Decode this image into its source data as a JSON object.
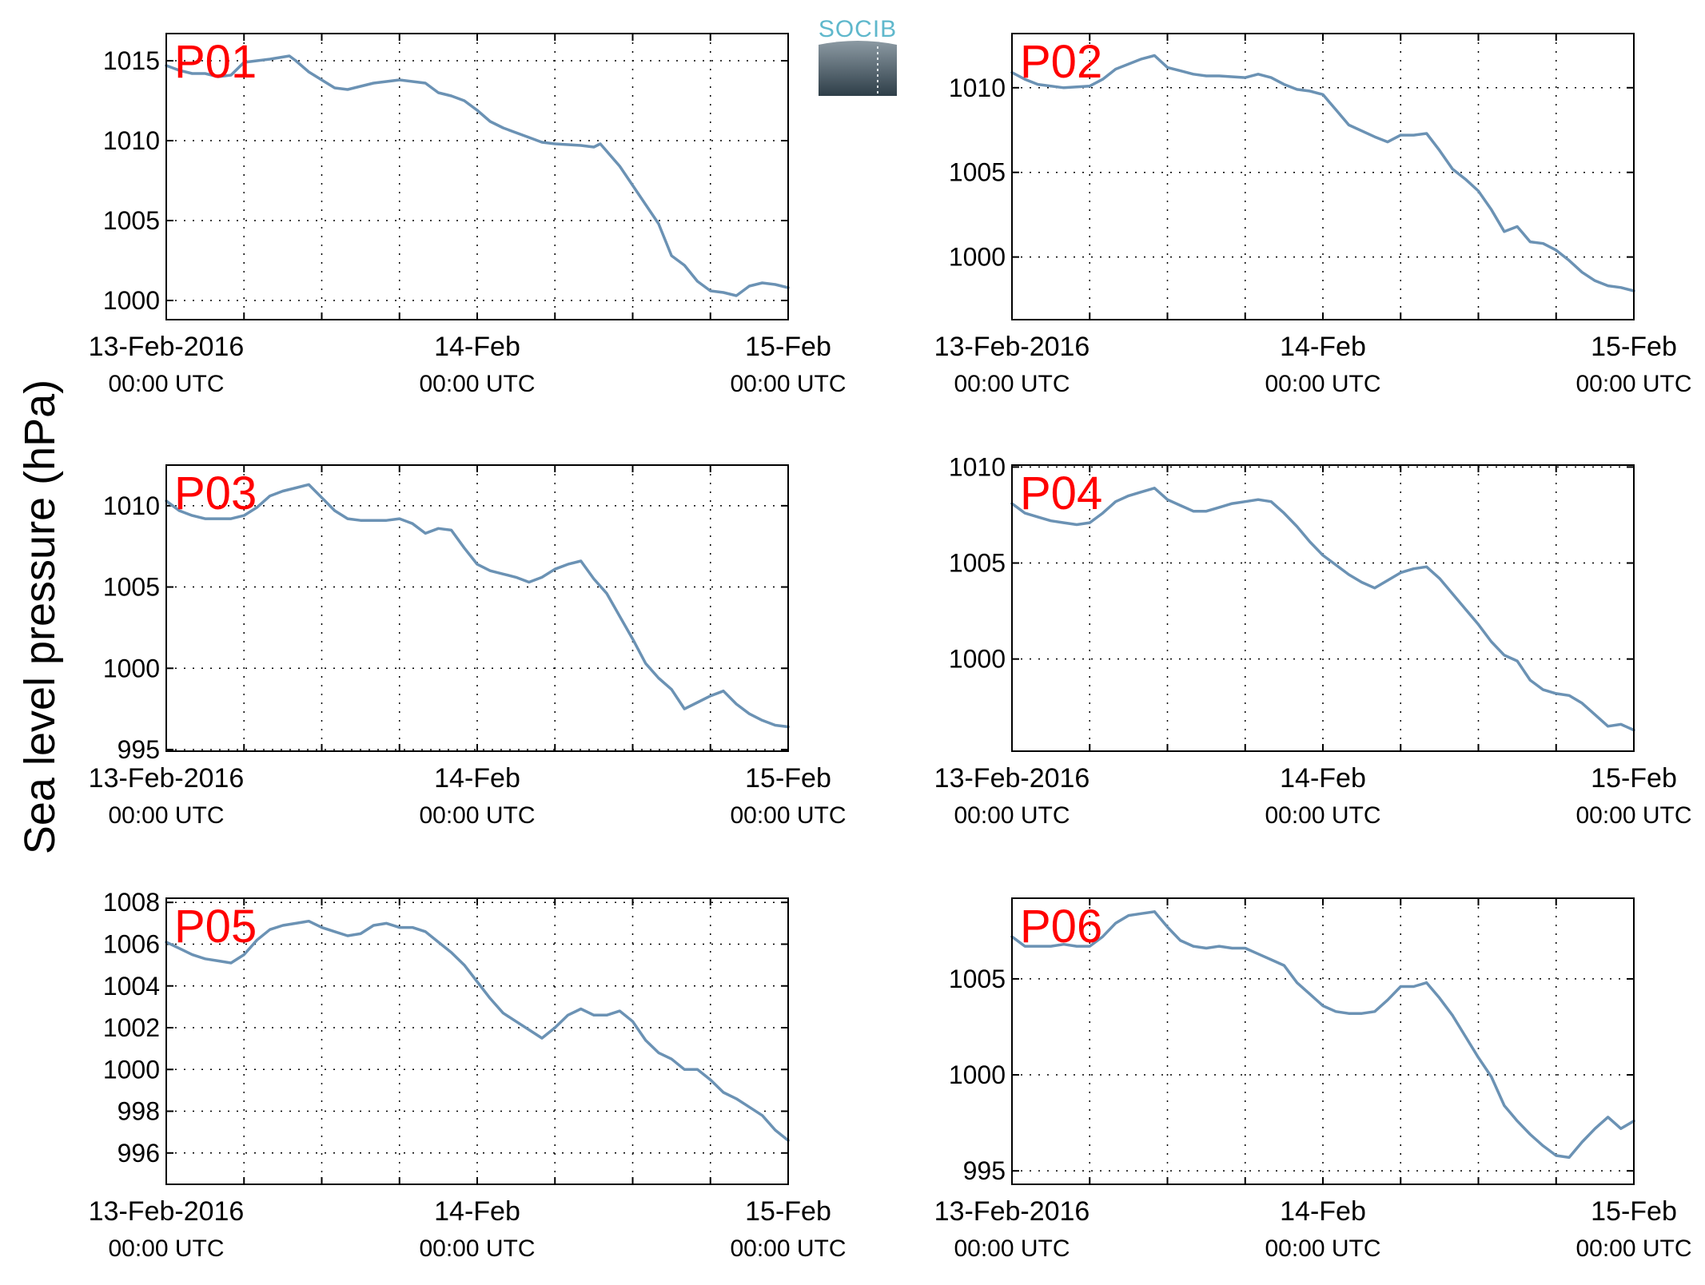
{
  "figure": {
    "ylabel": "Sea level pressure (hPa)",
    "logo_text": "SOCIB",
    "x_date_labels": [
      "13-Feb-2016",
      "14-Feb",
      "15-Feb"
    ],
    "x_time_labels": [
      "00:00 UTC",
      "00:00 UTC",
      "00:00 UTC"
    ],
    "colors": {
      "series": "#6b92b4",
      "panel_label": "#ff0000",
      "logo": "#5fb8cc"
    }
  },
  "chart_data": [
    {
      "type": "line",
      "name": "P01",
      "xlim": [
        0,
        48
      ],
      "ylim": [
        998.8,
        1016.7
      ],
      "yticks": [
        1000,
        1005,
        1010,
        1015
      ],
      "x": [
        0,
        1,
        2,
        3,
        4,
        5,
        6,
        8,
        9.5,
        10,
        11,
        12,
        13,
        14,
        16,
        17,
        18,
        20,
        21,
        22,
        23,
        24,
        25,
        26,
        28,
        29,
        30,
        32,
        33,
        33.5,
        35,
        37,
        38,
        39,
        40,
        41,
        42,
        43,
        44,
        45,
        46,
        47,
        48
      ],
      "y": [
        1014.7,
        1014.4,
        1014.2,
        1014.2,
        1014.0,
        1014.1,
        1014.9,
        1015.1,
        1015.3,
        1015.0,
        1014.3,
        1013.8,
        1013.3,
        1013.2,
        1013.6,
        1013.7,
        1013.8,
        1013.6,
        1013.0,
        1012.8,
        1012.5,
        1011.9,
        1011.2,
        1010.8,
        1010.2,
        1009.9,
        1009.8,
        1009.7,
        1009.6,
        1009.8,
        1008.4,
        1006.0,
        1004.8,
        1002.8,
        1002.2,
        1001.2,
        1000.6,
        1000.5,
        1000.3,
        1000.9,
        1001.1,
        1001.0,
        1000.8
      ]
    },
    {
      "type": "line",
      "name": "P02",
      "xlim": [
        0,
        48
      ],
      "ylim": [
        996.3,
        1013.2
      ],
      "yticks": [
        1000,
        1005,
        1010
      ],
      "x": [
        0,
        1,
        2,
        4,
        6,
        7,
        8,
        9,
        10,
        11,
        12,
        13,
        14,
        15,
        16,
        18,
        19,
        20,
        21,
        22,
        23,
        24,
        25,
        26,
        28,
        29,
        30,
        31,
        32,
        33,
        34,
        35,
        36,
        37,
        38,
        39,
        40,
        41,
        42,
        43,
        44,
        45,
        46,
        47,
        48
      ],
      "y": [
        1010.9,
        1010.5,
        1010.2,
        1010.0,
        1010.1,
        1010.5,
        1011.1,
        1011.4,
        1011.7,
        1011.9,
        1011.2,
        1011.0,
        1010.8,
        1010.7,
        1010.7,
        1010.6,
        1010.8,
        1010.6,
        1010.2,
        1009.9,
        1009.8,
        1009.6,
        1008.7,
        1007.8,
        1007.1,
        1006.8,
        1007.2,
        1007.2,
        1007.3,
        1006.3,
        1005.2,
        1004.6,
        1003.9,
        1002.8,
        1001.5,
        1001.8,
        1000.9,
        1000.8,
        1000.4,
        999.8,
        999.1,
        998.6,
        998.3,
        998.2,
        998.0
      ]
    },
    {
      "type": "line",
      "name": "P03",
      "xlim": [
        0,
        48
      ],
      "ylim": [
        994.9,
        1012.5
      ],
      "yticks": [
        995,
        1000,
        1005,
        1010
      ],
      "x": [
        0,
        1,
        2,
        3,
        4,
        5,
        6,
        7,
        8,
        9,
        10,
        11,
        12,
        13,
        14,
        15,
        16,
        17,
        18,
        19,
        20,
        21,
        22,
        23,
        24,
        25,
        26,
        27,
        28,
        29,
        30,
        31,
        32,
        33,
        34,
        35,
        36,
        37,
        38,
        39,
        40,
        41,
        42,
        43,
        44,
        45,
        46,
        47,
        48
      ],
      "y": [
        1010.3,
        1009.7,
        1009.4,
        1009.2,
        1009.2,
        1009.2,
        1009.4,
        1009.9,
        1010.6,
        1010.9,
        1011.1,
        1011.3,
        1010.5,
        1009.7,
        1009.2,
        1009.1,
        1009.1,
        1009.1,
        1009.2,
        1008.9,
        1008.3,
        1008.6,
        1008.5,
        1007.4,
        1006.4,
        1006.0,
        1005.8,
        1005.6,
        1005.3,
        1005.6,
        1006.1,
        1006.4,
        1006.6,
        1005.5,
        1004.6,
        1003.2,
        1001.8,
        1000.3,
        999.4,
        998.7,
        997.5,
        997.9,
        998.3,
        998.6,
        997.8,
        997.2,
        996.8,
        996.5,
        996.4
      ]
    },
    {
      "type": "line",
      "name": "P04",
      "xlim": [
        0,
        48
      ],
      "ylim": [
        995.2,
        1010.1
      ],
      "yticks": [
        1000,
        1005,
        1010
      ],
      "x": [
        0,
        1,
        2,
        3,
        4,
        5,
        6,
        7,
        8,
        9,
        10,
        11,
        12,
        13,
        14,
        15,
        16,
        17,
        18,
        19,
        20,
        21,
        22,
        23,
        24,
        25,
        26,
        27,
        28,
        29,
        30,
        31,
        32,
        33,
        34,
        35,
        36,
        37,
        38,
        39,
        40,
        41,
        42,
        43,
        44,
        45,
        46,
        47,
        48
      ],
      "y": [
        1008.1,
        1007.6,
        1007.4,
        1007.2,
        1007.1,
        1007.0,
        1007.1,
        1007.6,
        1008.2,
        1008.5,
        1008.7,
        1008.9,
        1008.3,
        1008.0,
        1007.7,
        1007.7,
        1007.9,
        1008.1,
        1008.2,
        1008.3,
        1008.2,
        1007.6,
        1006.9,
        1006.1,
        1005.4,
        1004.9,
        1004.4,
        1004.0,
        1003.7,
        1004.1,
        1004.5,
        1004.7,
        1004.8,
        1004.2,
        1003.4,
        1002.6,
        1001.8,
        1000.9,
        1000.2,
        999.9,
        998.9,
        998.4,
        998.2,
        998.1,
        997.7,
        997.1,
        996.5,
        996.6,
        996.3
      ]
    },
    {
      "type": "line",
      "name": "P05",
      "xlim": [
        0,
        48
      ],
      "ylim": [
        994.5,
        1008.2
      ],
      "yticks": [
        996,
        998,
        1000,
        1002,
        1004,
        1006,
        1008
      ],
      "x": [
        0,
        1,
        2,
        3,
        4,
        5,
        6,
        7,
        8,
        9,
        10,
        11,
        12,
        13,
        14,
        15,
        16,
        17,
        18,
        19,
        20,
        21,
        22,
        23,
        24,
        25,
        26,
        27,
        28,
        29,
        30,
        31,
        32,
        33,
        34,
        35,
        36,
        37,
        38,
        39,
        40,
        41,
        42,
        43,
        44,
        45,
        46,
        47,
        48
      ],
      "y": [
        1006.1,
        1005.8,
        1005.5,
        1005.3,
        1005.2,
        1005.1,
        1005.5,
        1006.2,
        1006.7,
        1006.9,
        1007.0,
        1007.1,
        1006.8,
        1006.6,
        1006.4,
        1006.5,
        1006.9,
        1007.0,
        1006.8,
        1006.8,
        1006.6,
        1006.1,
        1005.6,
        1005.0,
        1004.2,
        1003.4,
        1002.7,
        1002.3,
        1001.9,
        1001.5,
        1002.0,
        1002.6,
        1002.9,
        1002.6,
        1002.6,
        1002.8,
        1002.3,
        1001.4,
        1000.8,
        1000.5,
        1000.0,
        1000.0,
        999.5,
        998.9,
        998.6,
        998.2,
        997.8,
        997.1,
        996.6
      ]
    },
    {
      "type": "line",
      "name": "P06",
      "xlim": [
        0,
        48
      ],
      "ylim": [
        994.3,
        1009.2
      ],
      "yticks": [
        995,
        1000,
        1005
      ],
      "x": [
        0,
        1,
        2,
        3,
        4,
        5,
        6,
        7,
        8,
        9,
        10,
        11,
        12,
        13,
        14,
        15,
        16,
        17,
        18,
        19,
        20,
        21,
        22,
        23,
        24,
        25,
        26,
        27,
        28,
        29,
        30,
        31,
        32,
        33,
        34,
        35,
        36,
        37,
        38,
        39,
        40,
        41,
        42,
        43,
        44,
        45,
        46,
        47,
        48
      ],
      "y": [
        1007.2,
        1006.7,
        1006.7,
        1006.7,
        1006.8,
        1006.7,
        1006.7,
        1007.2,
        1007.9,
        1008.3,
        1008.4,
        1008.5,
        1007.7,
        1007.0,
        1006.7,
        1006.6,
        1006.7,
        1006.6,
        1006.6,
        1006.3,
        1006.0,
        1005.7,
        1004.8,
        1004.2,
        1003.6,
        1003.3,
        1003.2,
        1003.2,
        1003.3,
        1003.9,
        1004.6,
        1004.6,
        1004.8,
        1004.0,
        1003.1,
        1002.0,
        1000.9,
        999.9,
        998.4,
        997.6,
        996.9,
        996.3,
        995.8,
        995.7,
        996.5,
        997.2,
        997.8,
        997.2,
        997.6
      ]
    }
  ]
}
